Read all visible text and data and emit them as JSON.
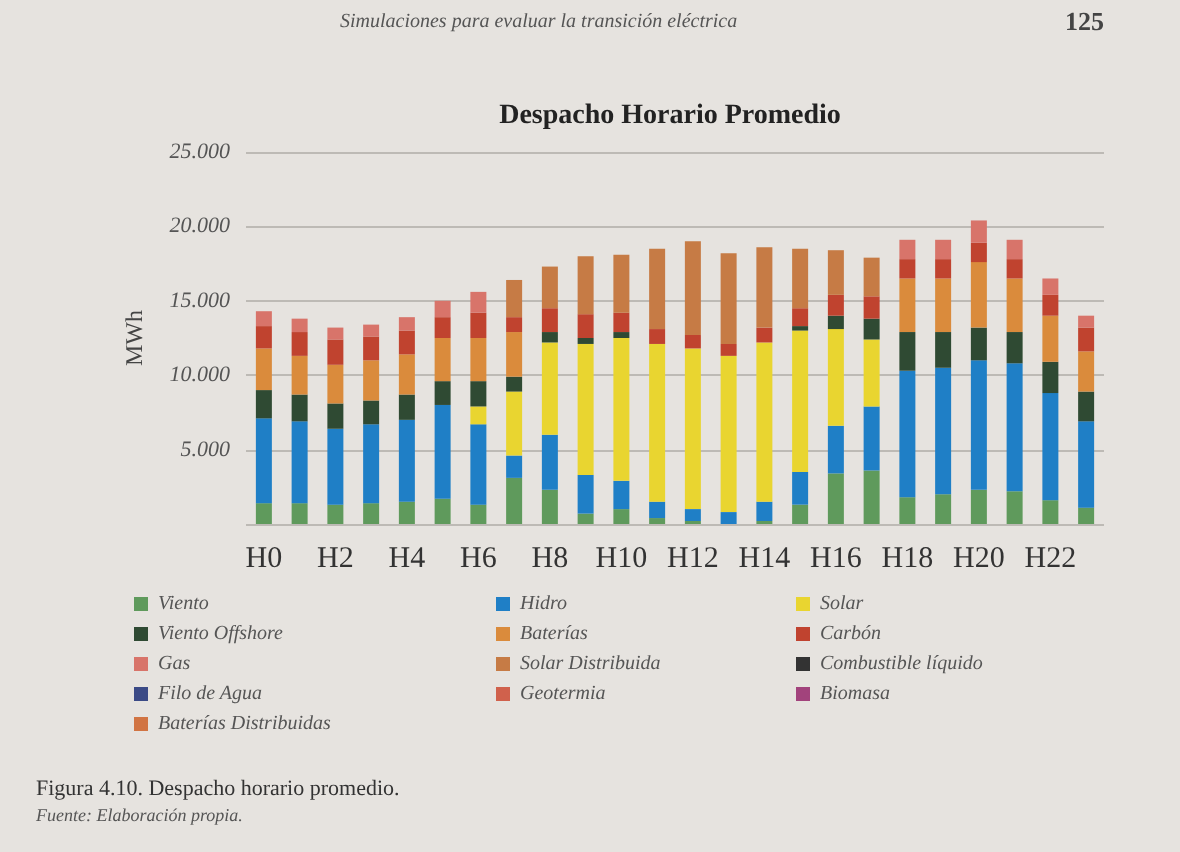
{
  "chart_data": {
    "type": "bar",
    "stacked": true,
    "title": "Despacho Horario Promedio",
    "ylabel": "MWh",
    "annotations": [
      "Simulaciones para evaluar la transición eléctrica",
      "125",
      "Figura 4.10. Despacho horario promedio.",
      "Fuente: Elaboración propia."
    ],
    "categories": [
      "H0",
      null,
      "H2",
      null,
      "H4",
      null,
      "H6",
      null,
      "H8",
      null,
      "H10",
      null,
      "H12",
      null,
      "H14",
      null,
      "H16",
      null,
      "H18",
      null,
      "H20",
      null,
      "H22",
      null
    ],
    "series": [
      {
        "name": "Viento",
        "color": "#5f9a5c",
        "values": [
          1400,
          1400,
          1300,
          1400,
          1500,
          1700,
          1300,
          3100,
          2300,
          700,
          1000,
          400,
          200,
          0,
          200,
          1300,
          3400,
          3600,
          1800,
          2000,
          2300,
          2200,
          1600,
          1100
        ]
      },
      {
        "name": "Hidro",
        "color": "#1f7fc6",
        "values": [
          5700,
          5500,
          5100,
          5300,
          5500,
          6300,
          5400,
          1500,
          3700,
          2600,
          1900,
          1100,
          800,
          800,
          1300,
          2200,
          3200,
          4300,
          8500,
          8500,
          8700,
          8600,
          7200,
          5800
        ]
      },
      {
        "name": "Solar",
        "color": "#e9d530",
        "values": [
          0,
          0,
          0,
          0,
          0,
          0,
          1200,
          4300,
          6200,
          8800,
          9600,
          10600,
          10800,
          10500,
          10700,
          9500,
          6500,
          4500,
          0,
          0,
          0,
          0,
          0,
          0
        ]
      },
      {
        "name": "Viento Offshore",
        "color": "#2f4a33",
        "values": [
          1900,
          1800,
          1700,
          1600,
          1700,
          1600,
          1700,
          1000,
          700,
          400,
          400,
          0,
          0,
          0,
          0,
          300,
          900,
          1400,
          2600,
          2400,
          2200,
          2100,
          2100,
          2000
        ]
      },
      {
        "name": "Baterías",
        "color": "#da8b3c",
        "values": [
          2800,
          2600,
          2600,
          2700,
          2700,
          2900,
          2900,
          3000,
          0,
          0,
          0,
          0,
          0,
          0,
          0,
          0,
          0,
          0,
          3600,
          3600,
          4400,
          3600,
          3100,
          2700
        ]
      },
      {
        "name": "Carbón",
        "color": "#c0432f",
        "values": [
          1500,
          1600,
          1700,
          1600,
          1600,
          1400,
          1700,
          1000,
          1600,
          1600,
          1300,
          1000,
          900,
          800,
          1000,
          1200,
          1400,
          1500,
          1300,
          1300,
          1300,
          1300,
          1400,
          1600
        ]
      },
      {
        "name": "Gas",
        "color": "#d8746a",
        "values": [
          1000,
          900,
          800,
          800,
          900,
          1100,
          1400,
          0,
          0,
          0,
          0,
          0,
          0,
          0,
          0,
          0,
          0,
          0,
          1300,
          1300,
          1500,
          1300,
          1100,
          800
        ]
      },
      {
        "name": "Solar Distribuida",
        "color": "#c67b45",
        "values": [
          0,
          0,
          0,
          0,
          0,
          0,
          0,
          2500,
          2800,
          3900,
          3900,
          5400,
          6300,
          6100,
          5400,
          4000,
          3000,
          2600,
          0,
          0,
          0,
          0,
          0,
          0
        ]
      },
      {
        "name": "Combustible líquido",
        "color": "#333333",
        "values": [
          0,
          0,
          0,
          0,
          0,
          0,
          0,
          0,
          0,
          0,
          0,
          0,
          0,
          0,
          0,
          0,
          0,
          0,
          0,
          0,
          0,
          0,
          0,
          0
        ]
      },
      {
        "name": "Filo de Agua",
        "color": "#3b4a86",
        "values": [
          0,
          0,
          0,
          0,
          0,
          0,
          0,
          0,
          0,
          0,
          0,
          0,
          0,
          0,
          0,
          0,
          0,
          0,
          0,
          0,
          0,
          0,
          0,
          0
        ]
      },
      {
        "name": "Geotermia",
        "color": "#d0614c",
        "values": [
          0,
          0,
          0,
          0,
          0,
          0,
          0,
          0,
          0,
          0,
          0,
          0,
          0,
          0,
          0,
          0,
          0,
          0,
          0,
          0,
          0,
          0,
          0,
          0
        ]
      },
      {
        "name": "Biomasa",
        "color": "#a2437c",
        "values": [
          0,
          0,
          0,
          0,
          0,
          0,
          0,
          0,
          0,
          0,
          0,
          0,
          0,
          0,
          0,
          0,
          0,
          0,
          0,
          0,
          0,
          0,
          0,
          0
        ]
      },
      {
        "name": "Baterías Distribuidas",
        "color": "#d17443",
        "values": [
          0,
          0,
          0,
          0,
          0,
          0,
          0,
          0,
          0,
          0,
          0,
          0,
          0,
          0,
          0,
          0,
          0,
          0,
          0,
          0,
          0,
          0,
          0,
          0
        ]
      }
    ],
    "ylim": [
      0,
      25000
    ],
    "yticks": [
      {
        "value": 0,
        "label": null
      },
      {
        "value": 5000,
        "label": "5.000"
      },
      {
        "value": 10000,
        "label": "10.000"
      },
      {
        "value": 15000,
        "label": "15.000"
      },
      {
        "value": 20000,
        "label": "20.000"
      },
      {
        "value": 25000,
        "label": "25.000"
      }
    ],
    "grid": "y",
    "legend": "bottom"
  }
}
